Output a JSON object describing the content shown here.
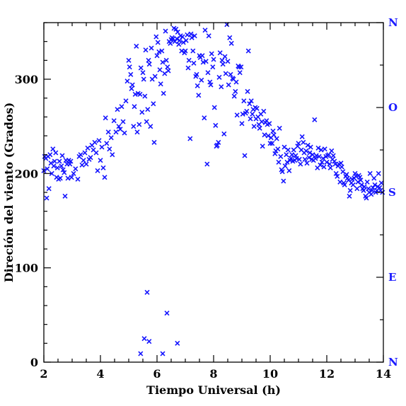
{
  "chart_data": {
    "type": "scatter",
    "title": "",
    "xlabel": "Tiempo Universal (h)",
    "ylabel": "Direción del viento (Grados)",
    "xlim": [
      2,
      14
    ],
    "ylim": [
      0,
      360
    ],
    "x_ticks": [
      2,
      4,
      6,
      8,
      10,
      12,
      14
    ],
    "y_ticks": [
      0,
      100,
      200,
      300
    ],
    "x_tick_labels": [
      "2",
      "4",
      "6",
      "8",
      "10",
      "12",
      "14"
    ],
    "y_tick_labels": [
      "0",
      "100",
      "200",
      "300"
    ],
    "right_axis_labels": [
      {
        "value": 0,
        "label": "N"
      },
      {
        "value": 90,
        "label": "E"
      },
      {
        "value": 180,
        "label": "S"
      },
      {
        "value": 270,
        "label": "O"
      },
      {
        "value": 360,
        "label": "N"
      }
    ],
    "marker": "x",
    "marker_color": "#1414ff",
    "grid": false,
    "points": [
      [
        2.0,
        203
      ],
      [
        2.03,
        218
      ],
      [
        2.07,
        216
      ],
      [
        2.1,
        174
      ],
      [
        2.12,
        205
      ],
      [
        2.15,
        218
      ],
      [
        2.18,
        184
      ],
      [
        2.22,
        220
      ],
      [
        2.25,
        211
      ],
      [
        2.28,
        200
      ],
      [
        2.32,
        226
      ],
      [
        2.35,
        208
      ],
      [
        2.38,
        213
      ],
      [
        2.42,
        222
      ],
      [
        2.45,
        196
      ],
      [
        2.48,
        206
      ],
      [
        2.52,
        194
      ],
      [
        2.55,
        213
      ],
      [
        2.58,
        195
      ],
      [
        2.62,
        208
      ],
      [
        2.65,
        219
      ],
      [
        2.68,
        204
      ],
      [
        2.72,
        201
      ],
      [
        2.75,
        176
      ],
      [
        2.78,
        214
      ],
      [
        2.82,
        210
      ],
      [
        2.85,
        195
      ],
      [
        2.88,
        214
      ],
      [
        2.92,
        210
      ],
      [
        2.95,
        213
      ],
      [
        2.98,
        196
      ],
      [
        3.05,
        200
      ],
      [
        3.12,
        205
      ],
      [
        3.2,
        194
      ],
      [
        3.25,
        218
      ],
      [
        3.3,
        220
      ],
      [
        3.35,
        209
      ],
      [
        3.4,
        214
      ],
      [
        3.45,
        222
      ],
      [
        3.5,
        210
      ],
      [
        3.55,
        227
      ],
      [
        3.6,
        215
      ],
      [
        3.65,
        217
      ],
      [
        3.7,
        230
      ],
      [
        3.75,
        225
      ],
      [
        3.8,
        233
      ],
      [
        3.85,
        222
      ],
      [
        3.9,
        203
      ],
      [
        3.95,
        235
      ],
      [
        4.0,
        214
      ],
      [
        4.05,
        228
      ],
      [
        4.1,
        206
      ],
      [
        4.15,
        196
      ],
      [
        4.18,
        259
      ],
      [
        4.22,
        232
      ],
      [
        4.28,
        244
      ],
      [
        4.32,
        226
      ],
      [
        4.38,
        238
      ],
      [
        4.42,
        220
      ],
      [
        4.48,
        256
      ],
      [
        4.55,
        244
      ],
      [
        4.6,
        268
      ],
      [
        4.65,
        250
      ],
      [
        4.7,
        247
      ],
      [
        4.75,
        271
      ],
      [
        4.8,
        255
      ],
      [
        4.85,
        243
      ],
      [
        4.9,
        277
      ],
      [
        4.95,
        298
      ],
      [
        5.0,
        320
      ],
      [
        5.03,
        313
      ],
      [
        5.07,
        305
      ],
      [
        5.1,
        290
      ],
      [
        5.13,
        294
      ],
      [
        5.17,
        250
      ],
      [
        5.2,
        271
      ],
      [
        5.23,
        284
      ],
      [
        5.27,
        335
      ],
      [
        5.3,
        244
      ],
      [
        5.33,
        285
      ],
      [
        5.37,
        252
      ],
      [
        5.4,
        284
      ],
      [
        5.43,
        312
      ],
      [
        5.47,
        265
      ],
      [
        5.5,
        307
      ],
      [
        5.53,
        300
      ],
      [
        5.57,
        282
      ],
      [
        5.6,
        331
      ],
      [
        5.63,
        255
      ],
      [
        5.67,
        268
      ],
      [
        5.7,
        320
      ],
      [
        5.73,
        316
      ],
      [
        5.77,
        250
      ],
      [
        5.8,
        333
      ],
      [
        5.83,
        300
      ],
      [
        5.87,
        274
      ],
      [
        5.9,
        233
      ],
      [
        5.93,
        303
      ],
      [
        5.97,
        345
      ],
      [
        6.0,
        325
      ],
      [
        6.03,
        339
      ],
      [
        6.07,
        329
      ],
      [
        6.1,
        310
      ],
      [
        6.13,
        295
      ],
      [
        6.17,
        330
      ],
      [
        6.2,
        318
      ],
      [
        6.23,
        285
      ],
      [
        6.27,
        306
      ],
      [
        6.3,
        351
      ],
      [
        6.33,
        320
      ],
      [
        6.37,
        313
      ],
      [
        6.4,
        309
      ],
      [
        6.43,
        340
      ],
      [
        6.47,
        338
      ],
      [
        6.5,
        342
      ],
      [
        6.53,
        344
      ],
      [
        6.57,
        343
      ],
      [
        6.6,
        354
      ],
      [
        6.63,
        340
      ],
      [
        6.67,
        353
      ],
      [
        6.7,
        343
      ],
      [
        6.73,
        350
      ],
      [
        6.77,
        337
      ],
      [
        6.8,
        341
      ],
      [
        6.83,
        346
      ],
      [
        6.87,
        330
      ],
      [
        6.9,
        345
      ],
      [
        6.93,
        339
      ],
      [
        6.97,
        328
      ],
      [
        7.0,
        330
      ],
      [
        7.03,
        341
      ],
      [
        7.07,
        347
      ],
      [
        7.1,
        312
      ],
      [
        7.13,
        320
      ],
      [
        7.17,
        237
      ],
      [
        7.2,
        348
      ],
      [
        7.23,
        344
      ],
      [
        7.27,
        330
      ],
      [
        7.3,
        317
      ],
      [
        7.33,
        346
      ],
      [
        7.37,
        303
      ],
      [
        7.4,
        305
      ],
      [
        7.43,
        293
      ],
      [
        7.47,
        283
      ],
      [
        7.5,
        325
      ],
      [
        7.53,
        323
      ],
      [
        7.57,
        299
      ],
      [
        7.6,
        325
      ],
      [
        7.63,
        318
      ],
      [
        7.67,
        259
      ],
      [
        7.7,
        352
      ],
      [
        7.73,
        319
      ],
      [
        7.77,
        210
      ],
      [
        7.8,
        307
      ],
      [
        7.83,
        346
      ],
      [
        7.87,
        297
      ],
      [
        7.9,
        294
      ],
      [
        7.93,
        327
      ],
      [
        7.97,
        313
      ],
      [
        8.0,
        321
      ],
      [
        8.03,
        270
      ],
      [
        8.07,
        251
      ],
      [
        8.1,
        229
      ],
      [
        8.13,
        230
      ],
      [
        8.17,
        233
      ],
      [
        8.2,
        302
      ],
      [
        8.23,
        328
      ],
      [
        8.27,
        292
      ],
      [
        8.3,
        320
      ],
      [
        8.33,
        316
      ],
      [
        8.37,
        242
      ],
      [
        8.4,
        324
      ],
      [
        8.43,
        306
      ],
      [
        8.47,
        358
      ],
      [
        8.5,
        319
      ],
      [
        8.53,
        294
      ],
      [
        8.57,
        344
      ],
      [
        8.6,
        305
      ],
      [
        8.63,
        338
      ],
      [
        8.67,
        301
      ],
      [
        8.7,
        300
      ],
      [
        8.73,
        282
      ],
      [
        8.77,
        287
      ],
      [
        8.8,
        297
      ],
      [
        8.83,
        262
      ],
      [
        8.87,
        314
      ],
      [
        8.9,
        313
      ],
      [
        8.93,
        307
      ],
      [
        8.97,
        313
      ],
      [
        9.0,
        253
      ],
      [
        9.03,
        263
      ],
      [
        9.07,
        277
      ],
      [
        9.1,
        219
      ],
      [
        9.13,
        264
      ],
      [
        9.17,
        266
      ],
      [
        9.2,
        287
      ],
      [
        9.23,
        330
      ],
      [
        9.27,
        274
      ],
      [
        9.3,
        258
      ],
      [
        9.33,
        277
      ],
      [
        9.37,
        263
      ],
      [
        9.4,
        268
      ],
      [
        9.43,
        250
      ],
      [
        9.47,
        270
      ],
      [
        9.5,
        258
      ],
      [
        9.53,
        269
      ],
      [
        9.57,
        260
      ],
      [
        9.6,
        252
      ],
      [
        9.63,
        248
      ],
      [
        9.67,
        263
      ],
      [
        9.7,
        255
      ],
      [
        9.73,
        229
      ],
      [
        9.77,
        266
      ],
      [
        9.8,
        241
      ],
      [
        9.83,
        254
      ],
      [
        9.87,
        256
      ],
      [
        9.9,
        252
      ],
      [
        9.93,
        240
      ],
      [
        9.97,
        253
      ],
      [
        10.0,
        232
      ],
      [
        10.03,
        238
      ],
      [
        10.07,
        232
      ],
      [
        10.1,
        245
      ],
      [
        10.13,
        241
      ],
      [
        10.17,
        221
      ],
      [
        10.2,
        224
      ],
      [
        10.23,
        237
      ],
      [
        10.27,
        226
      ],
      [
        10.3,
        212
      ],
      [
        10.33,
        248
      ],
      [
        10.37,
        218
      ],
      [
        10.4,
        204
      ],
      [
        10.43,
        202
      ],
      [
        10.47,
        192
      ],
      [
        10.5,
        228
      ],
      [
        10.53,
        208
      ],
      [
        10.57,
        220
      ],
      [
        10.6,
        212
      ],
      [
        10.63,
        225
      ],
      [
        10.67,
        203
      ],
      [
        10.7,
        214
      ],
      [
        10.73,
        216
      ],
      [
        10.77,
        220
      ],
      [
        10.8,
        213
      ],
      [
        10.83,
        225
      ],
      [
        10.87,
        214
      ],
      [
        10.9,
        219
      ],
      [
        10.93,
        216
      ],
      [
        10.97,
        229
      ],
      [
        11.0,
        232
      ],
      [
        11.03,
        215
      ],
      [
        11.07,
        210
      ],
      [
        11.1,
        225
      ],
      [
        11.13,
        239
      ],
      [
        11.17,
        233
      ],
      [
        11.2,
        222
      ],
      [
        11.23,
        215
      ],
      [
        11.27,
        224
      ],
      [
        11.3,
        211
      ],
      [
        11.33,
        230
      ],
      [
        11.37,
        217
      ],
      [
        11.4,
        222
      ],
      [
        11.43,
        228
      ],
      [
        11.47,
        215
      ],
      [
        11.5,
        220
      ],
      [
        11.53,
        214
      ],
      [
        11.57,
        257
      ],
      [
        11.6,
        216
      ],
      [
        11.63,
        219
      ],
      [
        11.67,
        206
      ],
      [
        11.7,
        227
      ],
      [
        11.73,
        218
      ],
      [
        11.77,
        209
      ],
      [
        11.8,
        225
      ],
      [
        11.83,
        212
      ],
      [
        11.87,
        216
      ],
      [
        11.9,
        207
      ],
      [
        11.93,
        226
      ],
      [
        11.97,
        218
      ],
      [
        12.0,
        212
      ],
      [
        12.03,
        219
      ],
      [
        12.07,
        220
      ],
      [
        12.1,
        210
      ],
      [
        12.13,
        206
      ],
      [
        12.17,
        224
      ],
      [
        12.2,
        215
      ],
      [
        12.23,
        219
      ],
      [
        12.27,
        213
      ],
      [
        12.3,
        210
      ],
      [
        12.33,
        200
      ],
      [
        12.37,
        197
      ],
      [
        12.4,
        208
      ],
      [
        12.43,
        210
      ],
      [
        12.47,
        191
      ],
      [
        12.5,
        211
      ],
      [
        12.53,
        207
      ],
      [
        12.57,
        202
      ],
      [
        12.6,
        190
      ],
      [
        12.63,
        188
      ],
      [
        12.67,
        197
      ],
      [
        12.7,
        199
      ],
      [
        12.73,
        195
      ],
      [
        12.77,
        193
      ],
      [
        12.8,
        176
      ],
      [
        12.83,
        182
      ],
      [
        12.87,
        190
      ],
      [
        12.9,
        194
      ],
      [
        12.93,
        188
      ],
      [
        12.97,
        195
      ],
      [
        13.0,
        200
      ],
      [
        13.03,
        197
      ],
      [
        13.07,
        184
      ],
      [
        13.1,
        191
      ],
      [
        13.13,
        198
      ],
      [
        13.17,
        196
      ],
      [
        13.2,
        193
      ],
      [
        13.23,
        188
      ],
      [
        13.27,
        184
      ],
      [
        13.3,
        182
      ],
      [
        13.33,
        186
      ],
      [
        13.37,
        176
      ],
      [
        13.4,
        174
      ],
      [
        13.43,
        191
      ],
      [
        13.47,
        184
      ],
      [
        13.5,
        180
      ],
      [
        13.53,
        200
      ],
      [
        13.57,
        178
      ],
      [
        13.6,
        182
      ],
      [
        13.63,
        185
      ],
      [
        13.67,
        195
      ],
      [
        13.7,
        188
      ],
      [
        13.73,
        180
      ],
      [
        13.77,
        182
      ],
      [
        13.8,
        186
      ],
      [
        13.83,
        200
      ],
      [
        13.87,
        185
      ],
      [
        13.9,
        182
      ],
      [
        13.93,
        190
      ],
      [
        13.97,
        180
      ],
      [
        5.42,
        9
      ],
      [
        5.55,
        25
      ],
      [
        5.72,
        22
      ],
      [
        5.65,
        74
      ],
      [
        6.2,
        9
      ],
      [
        6.35,
        52
      ],
      [
        6.72,
        20
      ]
    ]
  }
}
